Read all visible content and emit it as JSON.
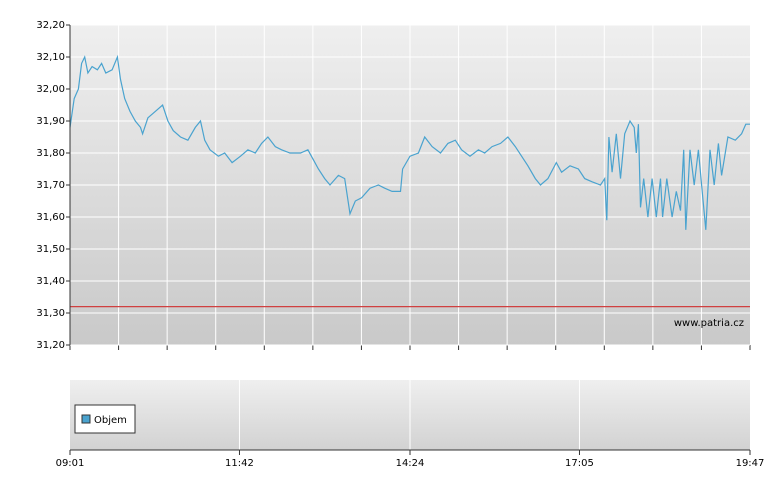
{
  "chart_data": [
    {
      "type": "line",
      "ylim": [
        31.2,
        32.2
      ],
      "yticks": [
        {
          "value": 31.2,
          "label": "31,20"
        },
        {
          "value": 31.3,
          "label": "31,30"
        },
        {
          "value": 31.4,
          "label": "31,40"
        },
        {
          "value": 31.5,
          "label": "31,50"
        },
        {
          "value": 31.6,
          "label": "31,60"
        },
        {
          "value": 31.7,
          "label": "31,70"
        },
        {
          "value": 31.8,
          "label": "31,80"
        },
        {
          "value": 31.9,
          "label": "31,90"
        },
        {
          "value": 32.0,
          "label": "32,00"
        },
        {
          "value": 32.1,
          "label": "32,10"
        },
        {
          "value": 32.2,
          "label": "32,20"
        }
      ],
      "xlim": [
        "09:01",
        "19:47"
      ],
      "grid": true,
      "reference_line": {
        "value": 31.32,
        "color": "#d04040"
      },
      "watermark": "www.patria.cz",
      "series": [
        {
          "color": "#4aa3cf",
          "x": [
            "09:01",
            "09:05",
            "09:09",
            "09:12",
            "09:15",
            "09:18",
            "09:22",
            "09:27",
            "09:31",
            "09:35",
            "09:41",
            "09:46",
            "09:49",
            "09:53",
            "09:58",
            "10:03",
            "10:08",
            "10:10",
            "10:15",
            "10:22",
            "10:29",
            "10:34",
            "10:39",
            "10:46",
            "10:53",
            "11:00",
            "11:05",
            "11:09",
            "11:14",
            "11:22",
            "11:28",
            "11:35",
            "11:43",
            "11:50",
            "11:57",
            "12:03",
            "12:09",
            "12:16",
            "12:22",
            "12:30",
            "12:40",
            "12:47",
            "12:52",
            "12:57",
            "13:03",
            "13:08",
            "13:16",
            "13:22",
            "13:27",
            "13:32",
            "13:38",
            "13:46",
            "13:54",
            "14:00",
            "14:07",
            "14:15",
            "14:17",
            "14:24",
            "14:32",
            "14:38",
            "14:45",
            "14:53",
            "15:00",
            "15:07",
            "15:13",
            "15:21",
            "15:29",
            "15:35",
            "15:42",
            "15:50",
            "15:57",
            "16:04",
            "16:10",
            "16:16",
            "16:23",
            "16:28",
            "16:35",
            "16:43",
            "16:48",
            "16:56",
            "17:04",
            "17:10",
            "17:17",
            "17:25",
            "17:29",
            "17:31",
            "17:33",
            "17:36",
            "17:40",
            "17:44",
            "17:48",
            "17:53",
            "17:57",
            "17:59",
            "18:01",
            "18:03",
            "18:06",
            "18:10",
            "18:14",
            "18:18",
            "18:22",
            "18:24",
            "18:28",
            "18:33",
            "18:37",
            "18:41",
            "18:44",
            "18:46",
            "18:50",
            "18:54",
            "18:58",
            "19:01",
            "19:05",
            "19:09",
            "19:13",
            "19:17",
            "19:20",
            "19:26",
            "19:33",
            "19:39",
            "19:43",
            "19:47"
          ],
          "values": [
            31.88,
            31.97,
            32.0,
            32.08,
            32.1,
            32.05,
            32.07,
            32.06,
            32.08,
            32.05,
            32.06,
            32.1,
            32.03,
            31.97,
            31.93,
            31.9,
            31.88,
            31.86,
            31.91,
            31.93,
            31.95,
            31.9,
            31.87,
            31.85,
            31.84,
            31.88,
            31.9,
            31.84,
            31.81,
            31.79,
            31.8,
            31.77,
            31.79,
            31.81,
            31.8,
            31.83,
            31.85,
            31.82,
            31.81,
            31.8,
            31.8,
            31.81,
            31.78,
            31.75,
            31.72,
            31.7,
            31.73,
            31.72,
            31.61,
            31.65,
            31.66,
            31.69,
            31.7,
            31.69,
            31.68,
            31.68,
            31.75,
            31.79,
            31.8,
            31.85,
            31.82,
            31.8,
            31.83,
            31.84,
            31.81,
            31.79,
            31.81,
            31.8,
            31.82,
            31.83,
            31.85,
            31.82,
            31.79,
            31.76,
            31.72,
            31.7,
            31.72,
            31.77,
            31.74,
            31.76,
            31.75,
            31.72,
            31.71,
            31.7,
            31.72,
            31.59,
            31.85,
            31.74,
            31.86,
            31.72,
            31.86,
            31.9,
            31.88,
            31.8,
            31.89,
            31.63,
            31.72,
            31.6,
            31.72,
            31.6,
            31.72,
            31.6,
            31.72,
            31.6,
            31.68,
            31.62,
            31.81,
            31.56,
            31.81,
            31.7,
            31.81,
            31.7,
            31.56,
            31.81,
            31.7,
            31.83,
            31.73,
            31.85,
            31.84,
            31.86,
            31.89,
            31.89
          ]
        }
      ]
    },
    {
      "type": "bar",
      "xlim": [
        "09:01",
        "19:47"
      ],
      "xticks": [
        "09:01",
        "11:42",
        "14:24",
        "17:05",
        "19:47"
      ],
      "legend": "upper left",
      "series": [
        {
          "name": "Objem",
          "color": "#4aa3cf",
          "values": []
        }
      ]
    }
  ]
}
